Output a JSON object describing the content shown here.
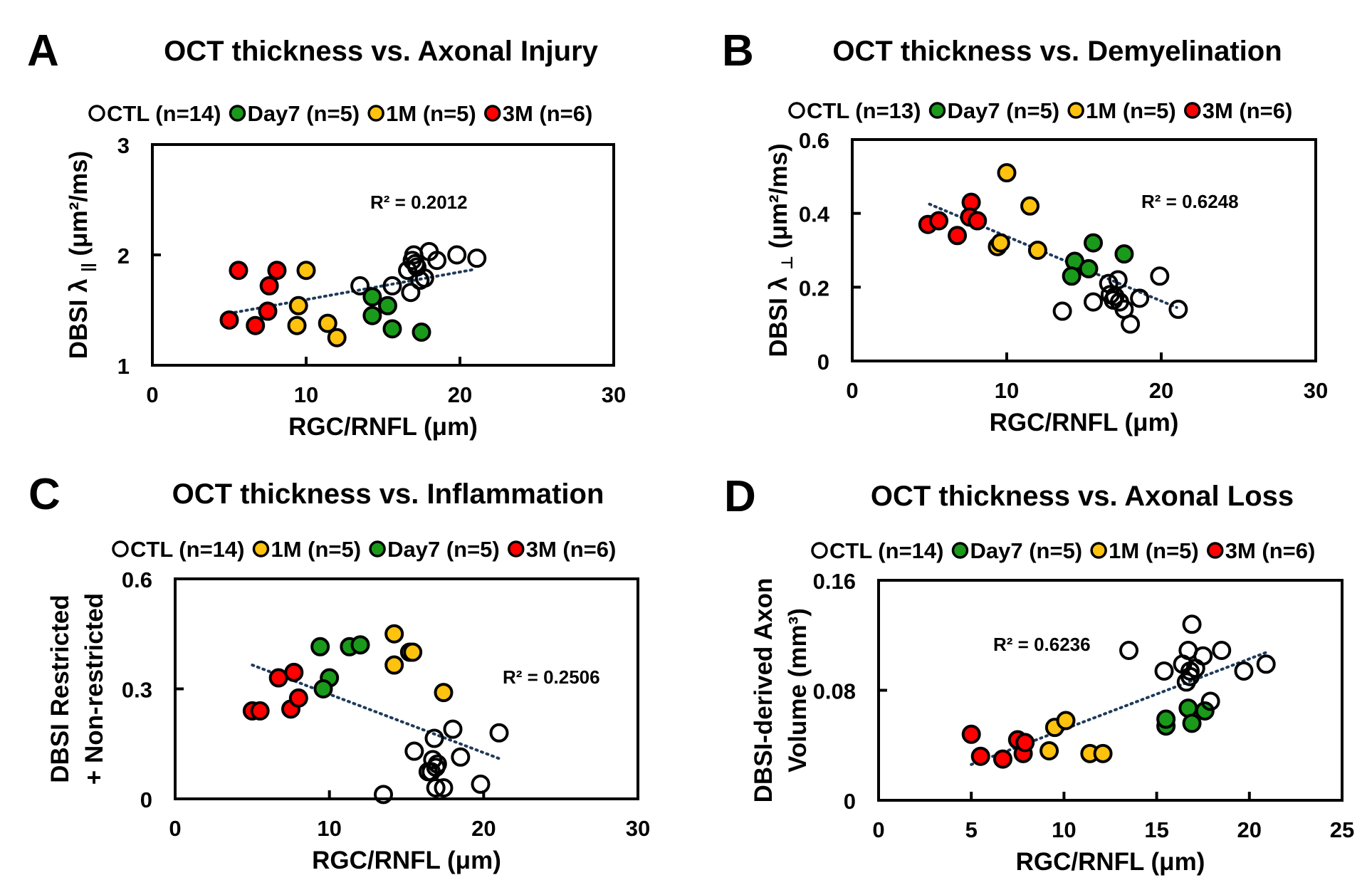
{
  "figure": {
    "colors": {
      "CTL": "#ffffff",
      "Day7": "#1a9a1a",
      "1M": "#ffc20e",
      "3M": "#ff0000",
      "marker_edge": "#000000",
      "trendline": "#1f3a5a"
    }
  },
  "chart_data": [
    {
      "panel": "A",
      "type": "scatter",
      "title": "OCT thickness vs. Axonal Injury",
      "xlabel": "RGC/RNFL (μm)",
      "ylabel_main": "DBSI λ",
      "ylabel_sub": "||",
      "ylabel_unit": "(μm²/ms)",
      "xlim": [
        0,
        30
      ],
      "ylim": [
        1,
        3
      ],
      "xticks": [
        0,
        10,
        20,
        30
      ],
      "yticks": [
        1,
        2,
        3
      ],
      "xtick_labels": [
        "0",
        "10",
        "20",
        "30"
      ],
      "ytick_labels": [
        "1",
        "2",
        "3"
      ],
      "r2_label": "R² = 0.2012",
      "trendline": {
        "x": [
          5.0,
          21.0
        ],
        "y": [
          1.47,
          1.87
        ]
      },
      "legend": [
        {
          "group": "CTL",
          "label": "CTL (n=14)"
        },
        {
          "group": "Day7",
          "label": "Day7 (n=5)"
        },
        {
          "group": "1M",
          "label": "1M (n=5)"
        },
        {
          "group": "3M",
          "label": "3M (n=6)"
        }
      ],
      "series": [
        {
          "name": "CTL",
          "x": [
            13.5,
            15.6,
            16.8,
            16.6,
            16.9,
            17.0,
            17.1,
            17.4,
            17.7,
            18.0,
            18.5,
            19.8,
            21.1,
            17.2
          ],
          "y": [
            1.72,
            1.72,
            1.66,
            1.86,
            1.95,
            2.0,
            1.92,
            1.77,
            1.79,
            2.03,
            1.95,
            2.0,
            1.97,
            1.89
          ]
        },
        {
          "name": "Day7",
          "x": [
            14.3,
            15.3,
            14.3,
            15.6,
            17.5
          ],
          "y": [
            1.62,
            1.54,
            1.45,
            1.33,
            1.3
          ]
        },
        {
          "name": "1M",
          "x": [
            10.0,
            9.5,
            9.4,
            11.4,
            12.0
          ],
          "y": [
            1.86,
            1.54,
            1.36,
            1.38,
            1.25
          ]
        },
        {
          "name": "3M",
          "x": [
            5.6,
            8.1,
            7.6,
            7.5,
            5.0,
            6.7
          ],
          "y": [
            1.86,
            1.86,
            1.72,
            1.49,
            1.41,
            1.36
          ]
        }
      ]
    },
    {
      "panel": "B",
      "type": "scatter",
      "title": "OCT thickness vs. Demyelination",
      "xlabel": "RGC/RNFL (μm)",
      "ylabel_main": "DBSI λ",
      "ylabel_sub": "⊥",
      "ylabel_unit": "(μm²/ms)",
      "xlim": [
        0,
        30
      ],
      "ylim": [
        0,
        0.6
      ],
      "xticks": [
        0,
        10,
        20,
        30
      ],
      "yticks": [
        0,
        0.2,
        0.4,
        0.6
      ],
      "xtick_labels": [
        "0",
        "10",
        "20",
        "30"
      ],
      "ytick_labels": [
        "0",
        "0.2",
        "0.4",
        "0.6"
      ],
      "r2_label": "R² = 0.6248",
      "trendline": {
        "x": [
          5.0,
          21.0
        ],
        "y": [
          0.425,
          0.145
        ]
      },
      "legend": [
        {
          "group": "CTL",
          "label": "CTL (n=13)"
        },
        {
          "group": "Day7",
          "label": "Day7 (n=5)"
        },
        {
          "group": "1M",
          "label": "1M (n=5)"
        },
        {
          "group": "3M",
          "label": "3M (n=6)"
        }
      ],
      "series": [
        {
          "name": "CTL",
          "x": [
            13.6,
            15.6,
            16.6,
            17.2,
            17.0,
            16.9,
            17.3,
            17.6,
            18.6,
            19.9,
            18.0,
            21.1,
            16.7
          ],
          "y": [
            0.135,
            0.16,
            0.21,
            0.22,
            0.175,
            0.165,
            0.16,
            0.14,
            0.17,
            0.23,
            0.1,
            0.14,
            0.18
          ]
        },
        {
          "name": "Day7",
          "x": [
            15.6,
            17.6,
            14.4,
            15.3,
            14.2
          ],
          "y": [
            0.32,
            0.29,
            0.27,
            0.25,
            0.23
          ]
        },
        {
          "name": "1M",
          "x": [
            10.0,
            11.5,
            9.4,
            9.6,
            12.0
          ],
          "y": [
            0.51,
            0.42,
            0.31,
            0.32,
            0.3
          ]
        },
        {
          "name": "3M",
          "x": [
            4.9,
            5.6,
            6.8,
            7.7,
            7.6,
            8.1
          ],
          "y": [
            0.37,
            0.38,
            0.34,
            0.43,
            0.39,
            0.38
          ]
        }
      ]
    },
    {
      "panel": "C",
      "type": "scatter",
      "title": "OCT thickness vs. Inflammation",
      "xlabel": "RGC/RNFL (μm)",
      "ylabel_line1": "DBSI Restricted",
      "ylabel_line2": "+ Non-restricted",
      "xlim": [
        0,
        30
      ],
      "ylim": [
        0,
        0.6
      ],
      "xticks": [
        0,
        10,
        20,
        30
      ],
      "yticks": [
        0,
        0.3,
        0.6
      ],
      "xtick_labels": [
        "0",
        "10",
        "20",
        "30"
      ],
      "ytick_labels": [
        "0",
        "0.3",
        "0.6"
      ],
      "r2_label": "R² = 0.2506",
      "trendline": {
        "x": [
          5.0,
          21.0
        ],
        "y": [
          0.365,
          0.11
        ]
      },
      "legend": [
        {
          "group": "CTL",
          "label": "CTL (n=14)"
        },
        {
          "group": "1M",
          "label": "1M (n=5)"
        },
        {
          "group": "Day7",
          "label": "Day7 (n=5)"
        },
        {
          "group": "3M",
          "label": "3M (n=6)"
        }
      ],
      "series": [
        {
          "name": "CTL",
          "x": [
            13.5,
            15.5,
            16.8,
            16.6,
            16.9,
            17.0,
            16.9,
            17.4,
            18.0,
            18.5,
            19.8,
            21.0,
            16.7,
            16.4
          ],
          "y": [
            0.012,
            0.13,
            0.165,
            0.074,
            0.086,
            0.095,
            0.03,
            0.03,
            0.19,
            0.114,
            0.04,
            0.18,
            0.107,
            0.074
          ]
        },
        {
          "name": "1M",
          "x": [
            14.2,
            15.2,
            15.4,
            14.2,
            17.4
          ],
          "y": [
            0.45,
            0.4,
            0.4,
            0.365,
            0.29
          ]
        },
        {
          "name": "Day7",
          "x": [
            9.4,
            11.3,
            12.0,
            10.0,
            9.6
          ],
          "y": [
            0.415,
            0.415,
            0.42,
            0.33,
            0.3
          ]
        },
        {
          "name": "3M",
          "x": [
            5.0,
            5.5,
            6.7,
            7.7,
            7.5,
            8.0
          ],
          "y": [
            0.24,
            0.24,
            0.33,
            0.345,
            0.245,
            0.275
          ]
        }
      ]
    },
    {
      "panel": "D",
      "type": "scatter",
      "title": "OCT thickness vs. Axonal Loss",
      "xlabel": "RGC/RNFL (μm)",
      "ylabel_line1": "DBSI-derived Axon",
      "ylabel_line2": "Volume (mm³)",
      "xlim": [
        0,
        25
      ],
      "ylim": [
        0,
        0.16
      ],
      "xticks": [
        0,
        5,
        10,
        15,
        20,
        25
      ],
      "yticks": [
        0,
        0.08,
        0.16
      ],
      "xtick_labels": [
        "0",
        "5",
        "10",
        "15",
        "20",
        "25"
      ],
      "ytick_labels": [
        "0",
        "0.08",
        "0.16"
      ],
      "r2_label": "R² = 0.6236",
      "trendline": {
        "x": [
          5.0,
          21.0
        ],
        "y": [
          0.026,
          0.108
        ]
      },
      "legend": [
        {
          "group": "CTL",
          "label": "CTL (n=14)"
        },
        {
          "group": "Day7",
          "label": "Day7 (n=5)"
        },
        {
          "group": "1M",
          "label": "1M (n=5)"
        },
        {
          "group": "3M",
          "label": "3M (n=6)"
        }
      ],
      "series": [
        {
          "name": "CTL",
          "x": [
            13.5,
            15.4,
            16.9,
            16.7,
            17.5,
            16.4,
            16.8,
            16.6,
            16.8,
            17.1,
            18.5,
            17.9,
            19.7,
            20.9
          ],
          "y": [
            0.109,
            0.094,
            0.128,
            0.109,
            0.105,
            0.099,
            0.094,
            0.086,
            0.09,
            0.096,
            0.109,
            0.072,
            0.094,
            0.099
          ]
        },
        {
          "name": "Day7",
          "x": [
            15.5,
            15.5,
            16.7,
            16.9,
            17.6
          ],
          "y": [
            0.054,
            0.059,
            0.067,
            0.056,
            0.065
          ]
        },
        {
          "name": "1M",
          "x": [
            9.5,
            10.1,
            9.2,
            11.4,
            12.1
          ],
          "y": [
            0.053,
            0.058,
            0.036,
            0.034,
            0.034
          ]
        },
        {
          "name": "3M",
          "x": [
            5.0,
            5.5,
            6.7,
            7.5,
            7.8,
            7.9
          ],
          "y": [
            0.048,
            0.032,
            0.03,
            0.044,
            0.034,
            0.042
          ]
        }
      ]
    }
  ]
}
